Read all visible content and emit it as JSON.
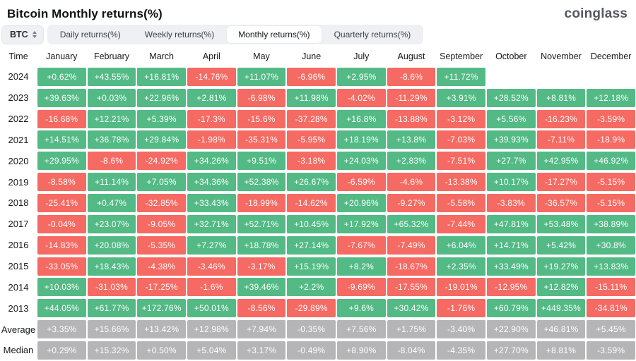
{
  "header": {
    "title": "Bitcoin Monthly returns(%)",
    "logo": "coinglass"
  },
  "controls": {
    "symbol_select": {
      "value": "BTC"
    },
    "tabs": [
      {
        "label": "Daily returns(%)",
        "active": false
      },
      {
        "label": "Weekly returns(%)",
        "active": false
      },
      {
        "label": "Monthly returns(%)",
        "active": true
      },
      {
        "label": "Quarterly returns(%)",
        "active": false
      }
    ]
  },
  "colors": {
    "positive": "#53ba85",
    "negative": "#f56a62",
    "neutral": "#b5b5b7"
  },
  "table": {
    "time_header": "Time",
    "columns": [
      "January",
      "February",
      "March",
      "April",
      "May",
      "June",
      "July",
      "August",
      "September",
      "October",
      "November",
      "December"
    ],
    "rows": [
      {
        "time": "2024",
        "kind": "year",
        "values": [
          "+0.62%",
          "+43.55%",
          "+16.81%",
          "-14.76%",
          "+11.07%",
          "-6.96%",
          "+2.95%",
          "-8.6%",
          "+11.72%",
          null,
          null,
          null
        ]
      },
      {
        "time": "2023",
        "kind": "year",
        "values": [
          "+39.63%",
          "+0.03%",
          "+22.96%",
          "+2.81%",
          "-6.98%",
          "+11.98%",
          "-4.02%",
          "-11.29%",
          "+3.91%",
          "+28.52%",
          "+8.81%",
          "+12.18%"
        ]
      },
      {
        "time": "2022",
        "kind": "year",
        "values": [
          "-16.68%",
          "+12.21%",
          "+5.39%",
          "-17.3%",
          "-15.6%",
          "-37.28%",
          "+16.8%",
          "-13.88%",
          "-3.12%",
          "+5.56%",
          "-16.23%",
          "-3.59%"
        ]
      },
      {
        "time": "2021",
        "kind": "year",
        "values": [
          "+14.51%",
          "+36.78%",
          "+29.84%",
          "-1.98%",
          "-35.31%",
          "-5.95%",
          "+18.19%",
          "+13.8%",
          "-7.03%",
          "+39.93%",
          "-7.11%",
          "-18.9%"
        ]
      },
      {
        "time": "2020",
        "kind": "year",
        "values": [
          "+29.95%",
          "-8.6%",
          "-24.92%",
          "+34.26%",
          "+9.51%",
          "-3.18%",
          "+24.03%",
          "+2.83%",
          "-7.51%",
          "+27.7%",
          "+42.95%",
          "+46.92%"
        ]
      },
      {
        "time": "2019",
        "kind": "year",
        "values": [
          "-8.58%",
          "+11.14%",
          "+7.05%",
          "+34.36%",
          "+52.38%",
          "+26.67%",
          "-6.59%",
          "-4.6%",
          "-13.38%",
          "+10.17%",
          "-17.27%",
          "-5.15%"
        ]
      },
      {
        "time": "2018",
        "kind": "year",
        "values": [
          "-25.41%",
          "+0.47%",
          "-32.85%",
          "+33.43%",
          "-18.99%",
          "-14.62%",
          "+20.96%",
          "-9.27%",
          "-5.58%",
          "-3.83%",
          "-36.57%",
          "-5.15%"
        ]
      },
      {
        "time": "2017",
        "kind": "year",
        "values": [
          "-0.04%",
          "+23.07%",
          "-9.05%",
          "+32.71%",
          "+52.71%",
          "+10.45%",
          "+17.92%",
          "+65.32%",
          "-7.44%",
          "+47.81%",
          "+53.48%",
          "+38.89%"
        ]
      },
      {
        "time": "2016",
        "kind": "year",
        "values": [
          "-14.83%",
          "+20.08%",
          "-5.35%",
          "+7.27%",
          "+18.78%",
          "+27.14%",
          "-7.67%",
          "-7.49%",
          "+6.04%",
          "+14.71%",
          "+5.42%",
          "+30.8%"
        ]
      },
      {
        "time": "2015",
        "kind": "year",
        "values": [
          "-33.05%",
          "+18.43%",
          "-4.38%",
          "-3.46%",
          "-3.17%",
          "+15.19%",
          "+8.2%",
          "-18.67%",
          "+2.35%",
          "+33.49%",
          "+19.27%",
          "+13.83%"
        ]
      },
      {
        "time": "2014",
        "kind": "year",
        "values": [
          "+10.03%",
          "-31.03%",
          "-17.25%",
          "-1.6%",
          "+39.46%",
          "+2.2%",
          "-9.69%",
          "-17.55%",
          "-19.01%",
          "-12.95%",
          "+12.82%",
          "-15.11%"
        ]
      },
      {
        "time": "2013",
        "kind": "year",
        "values": [
          "+44.05%",
          "+61.77%",
          "+172.76%",
          "+50.01%",
          "-8.56%",
          "-29.89%",
          "+9.6%",
          "+30.42%",
          "-1.76%",
          "+60.79%",
          "+449.35%",
          "-34.81%"
        ]
      },
      {
        "time": "Average",
        "kind": "stat",
        "values": [
          "+3.35%",
          "+15.66%",
          "+13.42%",
          "+12.98%",
          "+7.94%",
          "-0.35%",
          "+7.56%",
          "+1.75%",
          "-3.40%",
          "+22.90%",
          "+46.81%",
          "+5.45%"
        ]
      },
      {
        "time": "Median",
        "kind": "stat",
        "values": [
          "+0.29%",
          "+15.32%",
          "+0.50%",
          "+5.04%",
          "+3.17%",
          "-0.49%",
          "+8.90%",
          "-8.04%",
          "-4.35%",
          "+27.70%",
          "+8.81%",
          "-3.59%"
        ]
      }
    ]
  }
}
